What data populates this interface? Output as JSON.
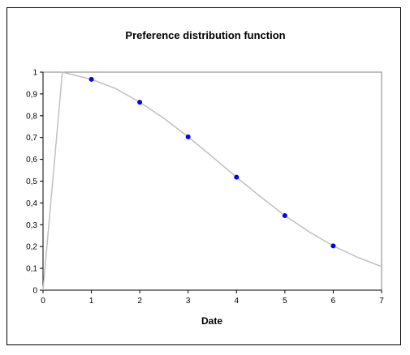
{
  "chart_data": {
    "type": "scatter",
    "title": "Preference distribution  function",
    "xlabel": "Date",
    "ylabel": "",
    "xlim": [
      0,
      7
    ],
    "ylim": [
      0,
      1
    ],
    "x_ticks": [
      "0",
      "1",
      "2",
      "3",
      "4",
      "5",
      "6",
      "7"
    ],
    "y_ticks": [
      "0",
      "0,1",
      "0,2",
      "0,3",
      "0,4",
      "0,5",
      "0,6",
      "0,7",
      "0,8",
      "0,9",
      "1"
    ],
    "grid": false,
    "legend": "none",
    "series": [
      {
        "kind": "points",
        "color": "#0000ff",
        "x": [
          1,
          2,
          3,
          4,
          5,
          6
        ],
        "y": [
          0.967,
          0.862,
          0.703,
          0.518,
          0.342,
          0.203
        ]
      },
      {
        "kind": "line",
        "color": "#c0c0c0",
        "x": [
          0,
          0.4,
          1,
          1.5,
          2,
          2.5,
          3,
          3.5,
          4,
          4.5,
          5,
          5.5,
          6,
          6.5,
          7
        ],
        "y": [
          0,
          1.0,
          0.967,
          0.925,
          0.862,
          0.788,
          0.703,
          0.612,
          0.518,
          0.428,
          0.342,
          0.268,
          0.203,
          0.151,
          0.108
        ]
      }
    ]
  }
}
